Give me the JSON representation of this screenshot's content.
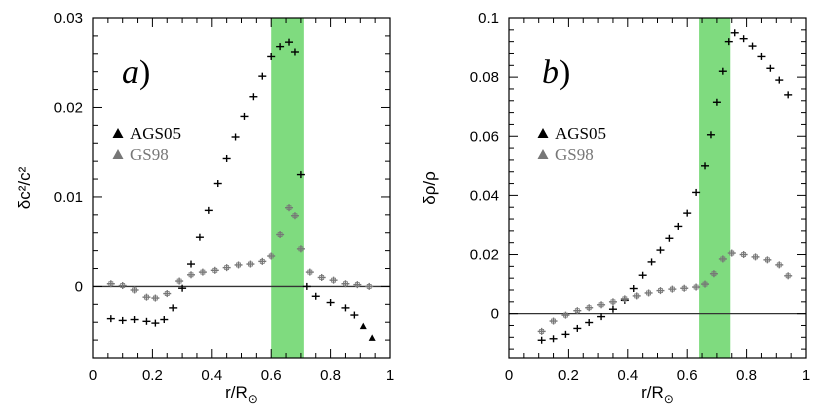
{
  "chart_data": [
    {
      "type": "scatter",
      "panel_label": "a",
      "xlabel": "r/R",
      "xlabel_sub": "⊙",
      "ylabel": "δc²/c²",
      "xlim": [
        0,
        1
      ],
      "ylim": [
        -0.008,
        0.03
      ],
      "xticks": [
        0,
        0.2,
        0.4,
        0.6,
        0.8,
        1
      ],
      "xtick_labels": [
        "0",
        "0.2",
        "0.4",
        "0.6",
        "0.8",
        "1"
      ],
      "yticks": [
        0,
        0.01,
        0.02,
        0.03
      ],
      "ytick_labels": [
        "0",
        "0.01",
        "0.02",
        "0.03"
      ],
      "zero_line": 0,
      "shaded_band": {
        "x": [
          0.6,
          0.71
        ],
        "color": "#7fdb7f"
      },
      "legend": [
        {
          "label": "AGS05",
          "color": "#000000"
        },
        {
          "label": "GS98",
          "color": "#777777"
        }
      ],
      "series": [
        {
          "name": "AGS05",
          "color": "#000000",
          "points": [
            [
              0.06,
              -0.0036
            ],
            [
              0.1,
              -0.0038
            ],
            [
              0.14,
              -0.0037
            ],
            [
              0.18,
              -0.0039
            ],
            [
              0.21,
              -0.0041
            ],
            [
              0.24,
              -0.0037
            ],
            [
              0.27,
              -0.0024
            ],
            [
              0.3,
              -0.0002
            ],
            [
              0.33,
              0.0025
            ],
            [
              0.36,
              0.0055
            ],
            [
              0.39,
              0.0085
            ],
            [
              0.42,
              0.0115
            ],
            [
              0.45,
              0.0143
            ],
            [
              0.48,
              0.0167
            ],
            [
              0.51,
              0.019
            ],
            [
              0.54,
              0.0212
            ],
            [
              0.57,
              0.0235
            ],
            [
              0.6,
              0.0257
            ],
            [
              0.63,
              0.0268
            ],
            [
              0.66,
              0.0273
            ],
            [
              0.68,
              0.0262
            ],
            [
              0.7,
              0.0125
            ],
            [
              0.72,
              0.0
            ],
            [
              0.75,
              -0.0011
            ],
            [
              0.8,
              -0.0018
            ],
            [
              0.85,
              -0.0024
            ],
            [
              0.88,
              -0.0032
            ],
            [
              0.91,
              -0.0045
            ],
            [
              0.94,
              -0.0058
            ]
          ]
        },
        {
          "name": "GS98",
          "color": "#777777",
          "points": [
            [
              0.06,
              0.0003
            ],
            [
              0.1,
              0.0001
            ],
            [
              0.14,
              -0.0004
            ],
            [
              0.18,
              -0.0012
            ],
            [
              0.21,
              -0.0013
            ],
            [
              0.25,
              -0.0008
            ],
            [
              0.29,
              0.0006
            ],
            [
              0.33,
              0.0013
            ],
            [
              0.37,
              0.0016
            ],
            [
              0.41,
              0.0018
            ],
            [
              0.45,
              0.0021
            ],
            [
              0.49,
              0.0024
            ],
            [
              0.53,
              0.0025
            ],
            [
              0.57,
              0.0028
            ],
            [
              0.6,
              0.0034
            ],
            [
              0.63,
              0.0058
            ],
            [
              0.66,
              0.0088
            ],
            [
              0.68,
              0.0079
            ],
            [
              0.7,
              0.0042
            ],
            [
              0.73,
              0.0016
            ],
            [
              0.77,
              0.001
            ],
            [
              0.81,
              0.0007
            ],
            [
              0.85,
              0.0003
            ],
            [
              0.89,
              0.0002
            ],
            [
              0.93,
              0.0
            ]
          ]
        }
      ]
    },
    {
      "type": "scatter",
      "panel_label": "b",
      "xlabel": "r/R",
      "xlabel_sub": "⊙",
      "ylabel": "δρ/ρ",
      "xlim": [
        0,
        1
      ],
      "ylim": [
        -0.015,
        0.1
      ],
      "xticks": [
        0,
        0.2,
        0.4,
        0.6,
        0.8,
        1
      ],
      "xtick_labels": [
        "0",
        "0.2",
        "0.4",
        "0.6",
        "0.8",
        "1"
      ],
      "yticks": [
        0,
        0.02,
        0.04,
        0.06,
        0.08,
        0.1
      ],
      "ytick_labels": [
        "0",
        "0.02",
        "0.04",
        "0.06",
        "0.08",
        "0.1"
      ],
      "zero_line": 0,
      "shaded_band": {
        "x": [
          0.64,
          0.745
        ],
        "color": "#7fdb7f"
      },
      "legend": [
        {
          "label": "AGS05",
          "color": "#000000"
        },
        {
          "label": "GS98",
          "color": "#777777"
        }
      ],
      "series": [
        {
          "name": "AGS05",
          "color": "#000000",
          "points": [
            [
              0.11,
              -0.009
            ],
            [
              0.15,
              -0.0085
            ],
            [
              0.19,
              -0.007
            ],
            [
              0.23,
              -0.005
            ],
            [
              0.27,
              -0.003
            ],
            [
              0.31,
              -0.001
            ],
            [
              0.35,
              0.0015
            ],
            [
              0.39,
              0.0045
            ],
            [
              0.42,
              0.0085
            ],
            [
              0.45,
              0.013
            ],
            [
              0.48,
              0.0175
            ],
            [
              0.51,
              0.0215
            ],
            [
              0.54,
              0.0255
            ],
            [
              0.57,
              0.0295
            ],
            [
              0.6,
              0.034
            ],
            [
              0.63,
              0.041
            ],
            [
              0.66,
              0.05
            ],
            [
              0.68,
              0.0605
            ],
            [
              0.7,
              0.0715
            ],
            [
              0.72,
              0.082
            ],
            [
              0.74,
              0.092
            ],
            [
              0.76,
              0.095
            ],
            [
              0.79,
              0.093
            ],
            [
              0.82,
              0.0905
            ],
            [
              0.85,
              0.087
            ],
            [
              0.88,
              0.083
            ],
            [
              0.91,
              0.079
            ],
            [
              0.94,
              0.074
            ]
          ]
        },
        {
          "name": "GS98",
          "color": "#777777",
          "points": [
            [
              0.11,
              -0.006
            ],
            [
              0.15,
              -0.0025
            ],
            [
              0.19,
              -0.0005
            ],
            [
              0.23,
              0.001
            ],
            [
              0.27,
              0.002
            ],
            [
              0.31,
              0.003
            ],
            [
              0.35,
              0.004
            ],
            [
              0.39,
              0.005
            ],
            [
              0.43,
              0.006
            ],
            [
              0.47,
              0.007
            ],
            [
              0.51,
              0.0078
            ],
            [
              0.55,
              0.0083
            ],
            [
              0.59,
              0.0086
            ],
            [
              0.63,
              0.009
            ],
            [
              0.66,
              0.01
            ],
            [
              0.69,
              0.0135
            ],
            [
              0.72,
              0.0185
            ],
            [
              0.75,
              0.0205
            ],
            [
              0.79,
              0.02
            ],
            [
              0.83,
              0.0192
            ],
            [
              0.87,
              0.0182
            ],
            [
              0.91,
              0.0165
            ],
            [
              0.94,
              0.0128
            ]
          ]
        }
      ]
    }
  ]
}
